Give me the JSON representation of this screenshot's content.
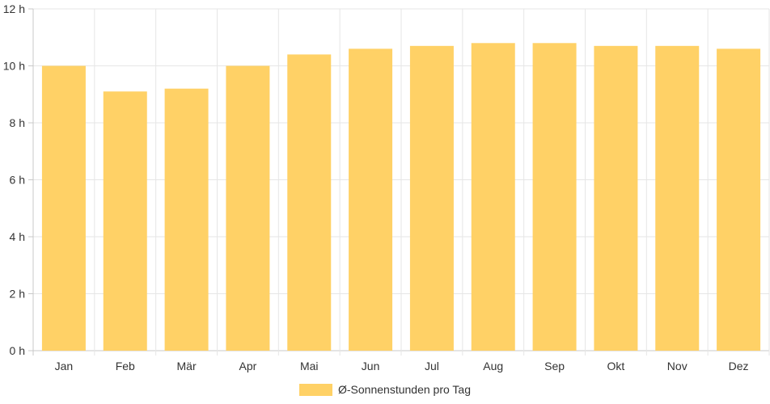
{
  "chart_data": {
    "type": "bar",
    "categories": [
      "Jan",
      "Feb",
      "Mär",
      "Apr",
      "Mai",
      "Jun",
      "Jul",
      "Aug",
      "Sep",
      "Okt",
      "Nov",
      "Dez"
    ],
    "series": [
      {
        "name": "Ø-Sonnenstunden pro Tag",
        "values": [
          10.0,
          9.1,
          9.2,
          10.0,
          10.4,
          10.6,
          10.7,
          10.8,
          10.8,
          10.7,
          10.7,
          10.6
        ]
      }
    ],
    "ylim": [
      0,
      12
    ],
    "yticks": [
      "0 h",
      "2 h",
      "4 h",
      "6 h",
      "8 h",
      "10 h",
      "12 h"
    ],
    "grid": true,
    "legend": "bottom-center",
    "colors": {
      "bar": "#ffd166",
      "grid": "#e6e6e6",
      "axis": "#c8c8c8"
    }
  }
}
